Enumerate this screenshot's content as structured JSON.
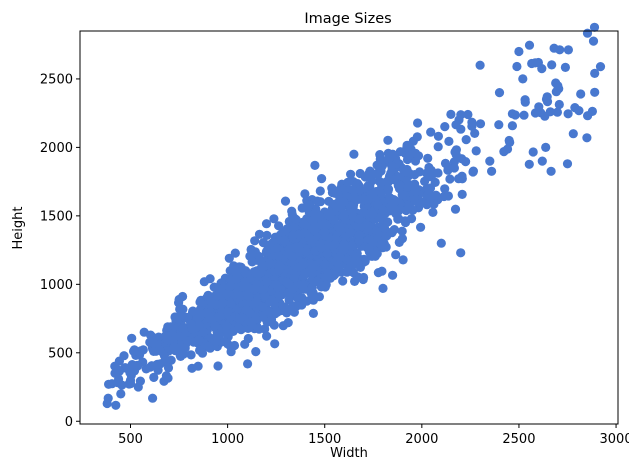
{
  "chart_data": {
    "type": "scatter",
    "title": "Image Sizes",
    "xlabel": "Width",
    "ylabel": "Height",
    "xlim": [
      240,
      3010
    ],
    "ylim": [
      -20,
      2850
    ],
    "xticks": [
      500,
      1000,
      1500,
      2000,
      2500,
      3000
    ],
    "yticks": [
      0,
      500,
      1000,
      1500,
      2000,
      2500
    ],
    "grid": false,
    "legend": "none",
    "marker_color": "#4878cf",
    "point_count_estimate": 2000,
    "cloud_model": {
      "slope": 0.92,
      "intercept": -80,
      "x_range": [
        380,
        2920
      ]
    },
    "sample_points": [
      [
        380,
        130
      ],
      [
        420,
        350
      ],
      [
        450,
        200
      ],
      [
        500,
        300
      ],
      [
        540,
        250
      ],
      [
        620,
        320
      ],
      [
        680,
        440
      ],
      [
        750,
        620
      ],
      [
        900,
        920
      ],
      [
        1000,
        800
      ],
      [
        1200,
        1240
      ],
      [
        1250,
        800
      ],
      [
        1500,
        1380
      ],
      [
        1600,
        1600
      ],
      [
        1650,
        1950
      ],
      [
        1700,
        1050
      ],
      [
        1800,
        970
      ],
      [
        1850,
        1950
      ],
      [
        2000,
        1600
      ],
      [
        2100,
        1300
      ],
      [
        2200,
        1230
      ],
      [
        2300,
        2600
      ],
      [
        2350,
        1900
      ],
      [
        2400,
        2400
      ],
      [
        2450,
        2050
      ],
      [
        2500,
        2700
      ],
      [
        2520,
        2500
      ],
      [
        2600,
        2620
      ],
      [
        2620,
        1900
      ],
      [
        2700,
        2450
      ],
      [
        2750,
        1880
      ],
      [
        2780,
        2100
      ],
      [
        2850,
        2070
      ],
      [
        2890,
        2540
      ],
      [
        2920,
        2590
      ]
    ]
  }
}
